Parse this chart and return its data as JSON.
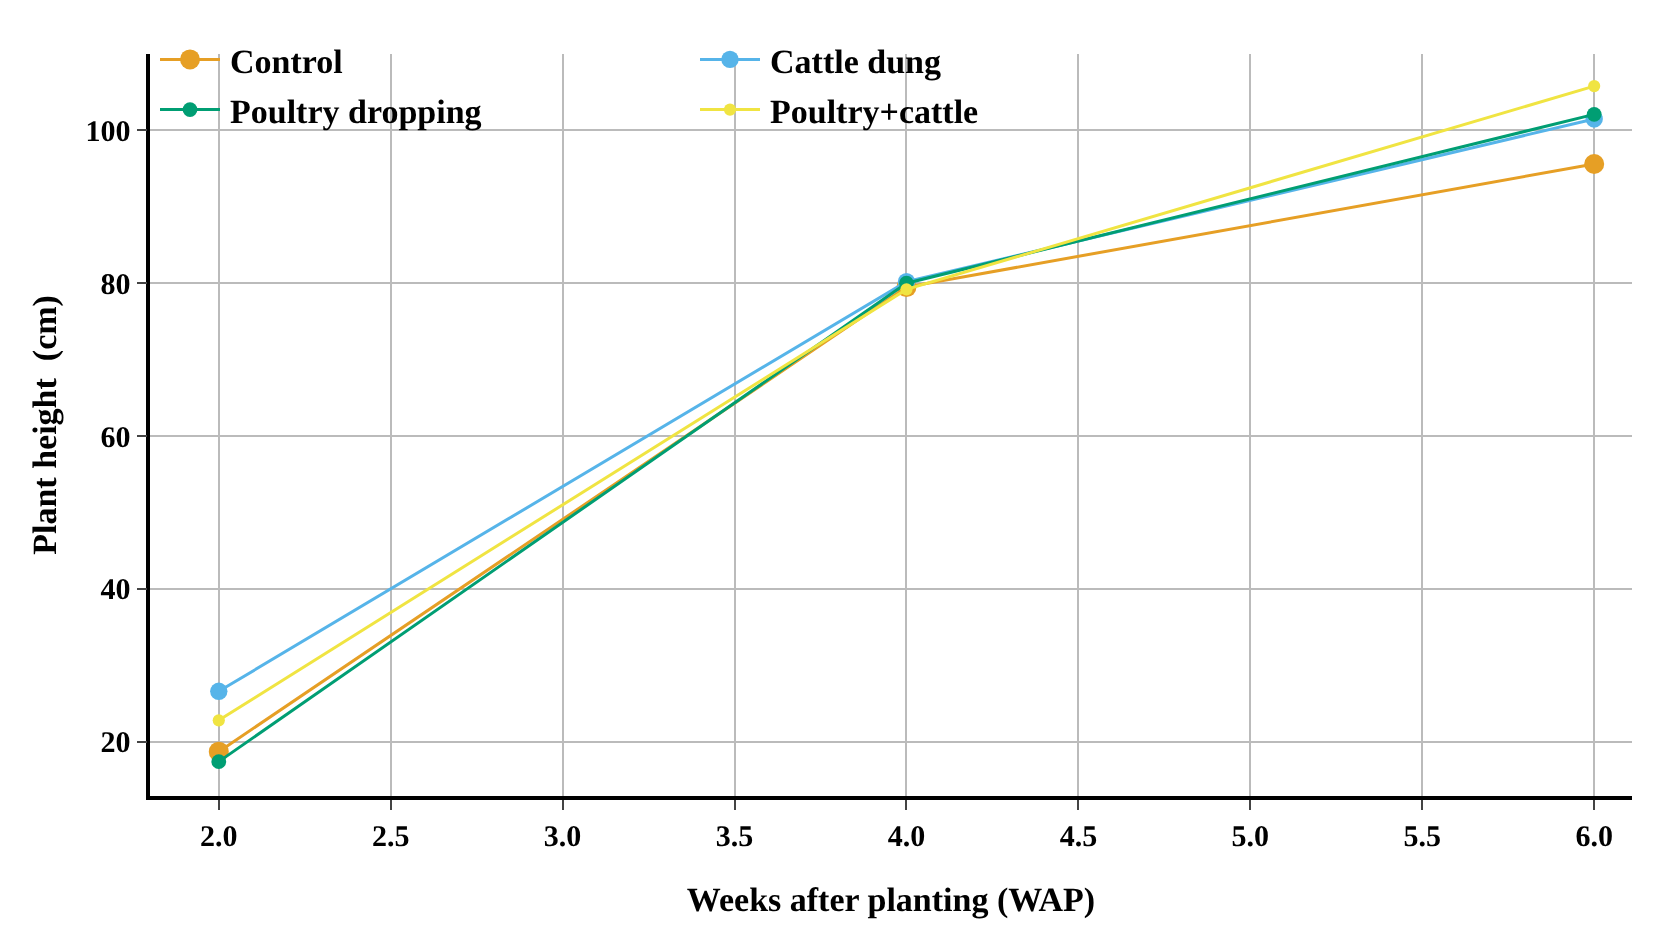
{
  "chart_data": {
    "type": "line",
    "xlabel": "Weeks after planting (WAP)",
    "ylabel": "Plant height  (cm)",
    "x": [
      2,
      4,
      6
    ],
    "series": [
      {
        "name": "Control",
        "color": "#e69f25",
        "values": [
          18.7,
          79.5,
          95.6
        ]
      },
      {
        "name": "Cattle dung",
        "color": "#56b4e9",
        "values": [
          26.6,
          80.2,
          101.5
        ]
      },
      {
        "name": "Poultry dropping",
        "color": "#009e73",
        "values": [
          17.4,
          80.0,
          102.1
        ]
      },
      {
        "name": "Poultry+cattle",
        "color": "#f0e442",
        "values": [
          22.8,
          79.2,
          105.8
        ]
      }
    ],
    "xlim": [
      1.8,
      6.11
    ],
    "ylim": [
      12.9,
      110
    ],
    "xticks": [
      {
        "value": 2,
        "label": "2.0"
      },
      {
        "value": 2.5,
        "label": "2.5"
      },
      {
        "value": 3,
        "label": "3.0"
      },
      {
        "value": 3.5,
        "label": "3.5"
      },
      {
        "value": 4,
        "label": "4.0"
      },
      {
        "value": 4.5,
        "label": "4.5"
      },
      {
        "value": 5,
        "label": "5.0"
      },
      {
        "value": 5.5,
        "label": "5.5"
      },
      {
        "value": 6,
        "label": "6.0"
      }
    ],
    "yticks": [
      20,
      40,
      60,
      80,
      100
    ],
    "grid": true,
    "legend": "top left",
    "marker": "circle",
    "line_style": "solid"
  }
}
